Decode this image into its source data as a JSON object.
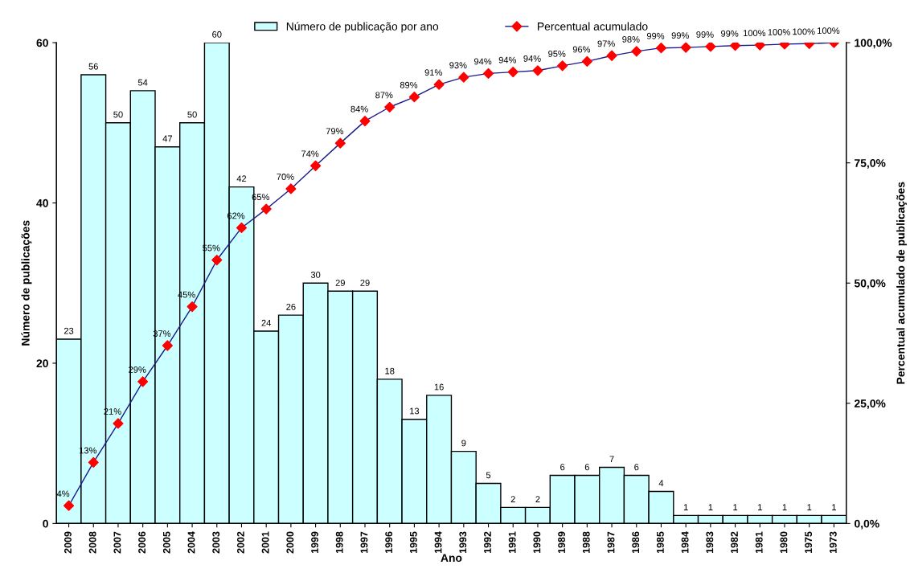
{
  "chart_data": {
    "type": "bar",
    "xlabel": "Ano",
    "ylabel": "Número de publicações",
    "y2label": "Percentual acumulado de publicações",
    "categories": [
      "2009",
      "2008",
      "2007",
      "2006",
      "2005",
      "2004",
      "2003",
      "2002",
      "2001",
      "2000",
      "1999",
      "1998",
      "1997",
      "1996",
      "1995",
      "1994",
      "1993",
      "1992",
      "1991",
      "1990",
      "1989",
      "1988",
      "1987",
      "1986",
      "1985",
      "1984",
      "1983",
      "1982",
      "1981",
      "1980",
      "1975",
      "1973"
    ],
    "series": [
      {
        "name": "Número de publicação por ano",
        "color": "#ccffff",
        "data_labels": true,
        "values": [
          23,
          56,
          50,
          54,
          47,
          50,
          60,
          42,
          24,
          26,
          30,
          29,
          29,
          18,
          13,
          16,
          9,
          5,
          2,
          2,
          6,
          6,
          7,
          6,
          4,
          1,
          1,
          1,
          1,
          1,
          1,
          1
        ]
      },
      {
        "name": "Percentual acumulado",
        "type": "line",
        "axis": "y2",
        "color": "#1a1a8c",
        "marker": "diamond",
        "colors": [
          "#ff0000",
          "#ff0000",
          "#ff0000",
          "#ff0000",
          "#ff0000",
          "#ff0000",
          "#ff0000",
          "#ff0000",
          "#ff0000",
          "#ff0000",
          "#ff0000",
          "#ff0000",
          "#ff0000",
          "#ff0000",
          "#ff0000",
          "#ff0000",
          "#ff0000",
          "#ff0000",
          "#ff0000",
          "#ff0000",
          "#ff0000",
          "#ff0000",
          "#ff0000",
          "#ff0000",
          "#ff0000",
          "#ff0000",
          "#ff0000",
          "#ff0000",
          "#ff0000",
          "#ff0000",
          "#ff0000",
          "#ff0000"
        ],
        "values": [
          3.7,
          12.7,
          20.8,
          29.5,
          37.0,
          45.1,
          54.8,
          61.5,
          65.4,
          69.6,
          74.4,
          79.1,
          83.7,
          86.6,
          88.7,
          91.3,
          92.8,
          93.6,
          93.9,
          94.2,
          95.2,
          96.1,
          97.3,
          98.2,
          98.9,
          99.0,
          99.2,
          99.4,
          99.5,
          99.7,
          99.8,
          100
        ],
        "value_labels": [
          "4%",
          "13%",
          "21%",
          "29%",
          "37%",
          "45%",
          "55%",
          "62%",
          "65%",
          "70%",
          "74%",
          "79%",
          "84%",
          "87%",
          "89%",
          "91%",
          "93%",
          "94%",
          "94%",
          "94%",
          "95%",
          "96%",
          "97%",
          "98%",
          "99%",
          "99%",
          "99%",
          "99%",
          "100%",
          "100%",
          "100%",
          "100%"
        ]
      }
    ],
    "ylim": [
      0,
      60
    ],
    "yticks": [
      0,
      20,
      40,
      60
    ],
    "y2lim": [
      0,
      100
    ],
    "y2ticks": [
      {
        "value": 0,
        "label": "0,0%"
      },
      {
        "value": 25,
        "label": "25,0%"
      },
      {
        "value": 50,
        "label": "50,0%"
      },
      {
        "value": 75,
        "label": "75,0%"
      },
      {
        "value": 100,
        "label": "100,0%"
      }
    ],
    "grid": false,
    "legend": "top"
  }
}
